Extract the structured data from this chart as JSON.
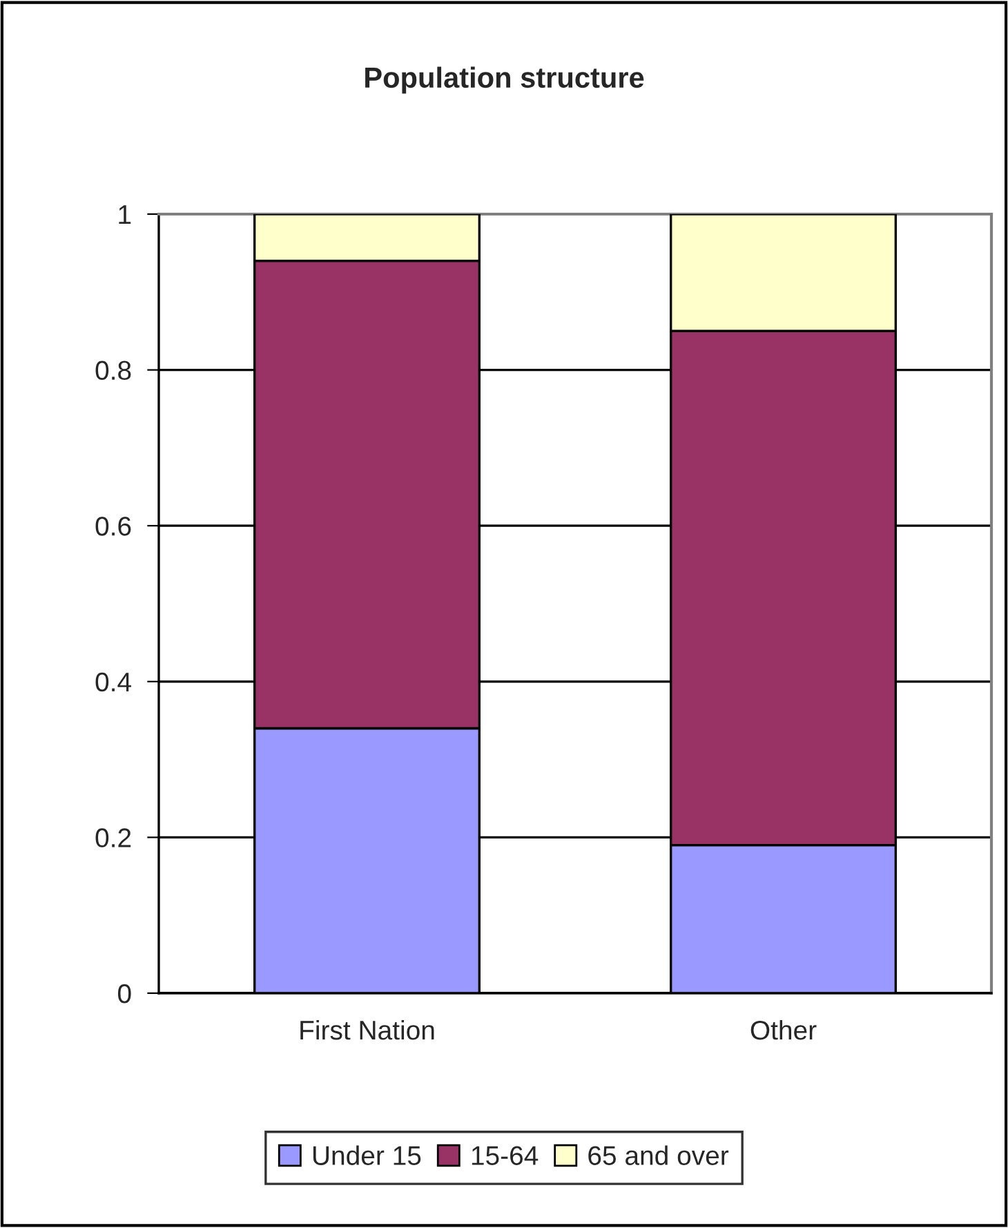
{
  "chart_data": {
    "type": "bar",
    "title": "Population structure",
    "stacked": true,
    "categories": [
      "First Nation",
      "Other"
    ],
    "series": [
      {
        "name": "Under 15",
        "color": "#9999ff",
        "values": [
          0.34,
          0.19
        ]
      },
      {
        "name": "15-64",
        "color": "#993366",
        "values": [
          0.6,
          0.66
        ]
      },
      {
        "name": "65 and over",
        "color": "#ffffcc",
        "values": [
          0.06,
          0.15
        ]
      }
    ],
    "ylim": [
      0,
      1
    ],
    "yticks": [
      0,
      0.2,
      0.4,
      0.6,
      0.8,
      1
    ],
    "grid": "y",
    "legend": "bottom"
  }
}
